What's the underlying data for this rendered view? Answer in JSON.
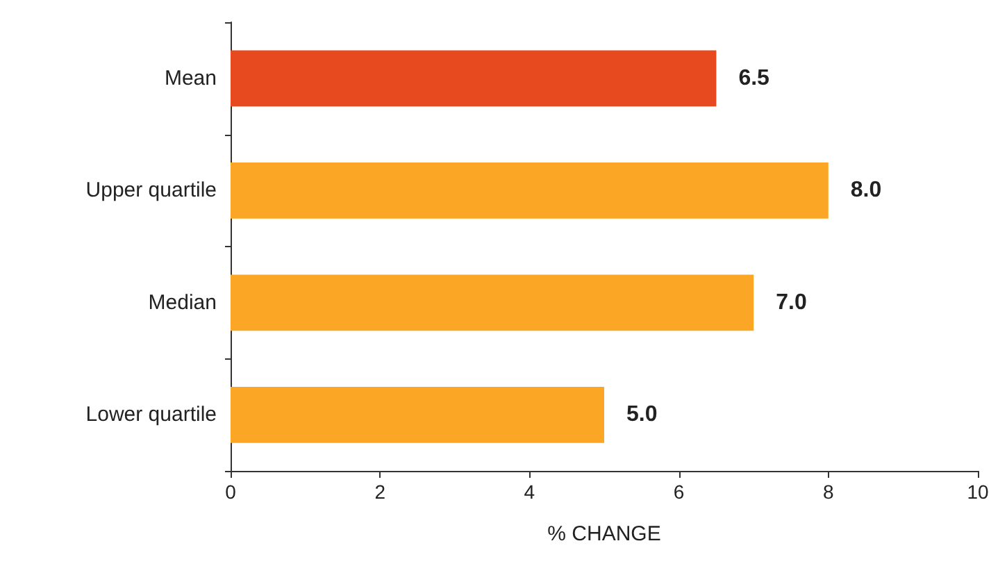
{
  "chart_data": {
    "type": "bar",
    "orientation": "horizontal",
    "categories": [
      "Mean",
      "Upper quartile",
      "Median",
      "Lower quartile"
    ],
    "values": [
      6.5,
      8.0,
      7.0,
      5.0
    ],
    "colors": [
      "#e64a1e",
      "#fca625",
      "#fca625",
      "#fca625"
    ],
    "value_labels": [
      "6.5",
      "8.0",
      "7.0",
      "5.0"
    ],
    "xlabel": "% CHANGE",
    "xlim": [
      0,
      10
    ],
    "xticks": [
      0,
      2,
      4,
      6,
      8,
      10
    ],
    "grid": false
  }
}
